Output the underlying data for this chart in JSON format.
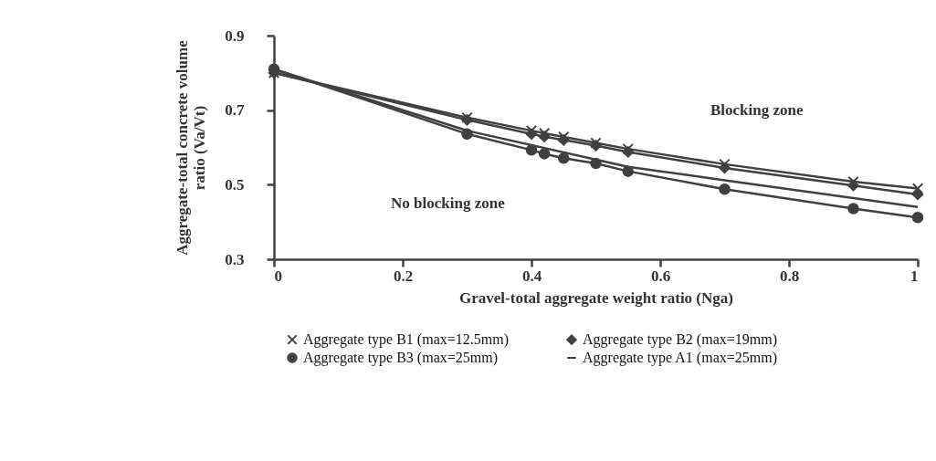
{
  "chart_data": {
    "type": "line",
    "xlabel": "Gravel-total aggregate weight ratio (Nga)",
    "ylabel": "Aggregate-total concrete volume ratio (Va/Vt)",
    "xlim": [
      0,
      1
    ],
    "xticks": [
      0,
      0.2,
      0.4,
      0.6,
      0.8,
      1
    ],
    "ylim": [
      0.3,
      0.9
    ],
    "yticks": [
      0.3,
      0.5,
      0.7,
      0.9
    ],
    "grid": false,
    "legend": "bottom",
    "annotations": [
      "Blocking zone",
      "No blocking zone"
    ],
    "series": [
      {
        "name": "Aggregate type B1 (max=12.5mm)",
        "color": "#404040",
        "marker": "cross",
        "x": [
          0,
          0.3,
          0.4,
          0.42,
          0.45,
          0.5,
          0.55,
          0.7,
          0.9,
          1
        ],
        "values": [
          0.8,
          0.68,
          0.645,
          0.638,
          0.628,
          0.612,
          0.596,
          0.555,
          0.508,
          0.49
        ]
      },
      {
        "name": "Aggregate type B2 (max=19mm)",
        "color": "#404040",
        "marker": "diamond",
        "x": [
          0,
          0.3,
          0.4,
          0.42,
          0.45,
          0.5,
          0.55,
          0.7,
          0.9,
          1
        ],
        "values": [
          0.8,
          0.674,
          0.636,
          0.629,
          0.62,
          0.605,
          0.588,
          0.545,
          0.498,
          0.474
        ]
      },
      {
        "name": "Aggregate type B3 (max=25mm)",
        "color": "#404040",
        "marker": "circle",
        "x": [
          0,
          0.3,
          0.4,
          0.42,
          0.45,
          0.5,
          0.55,
          0.7,
          0.9,
          1
        ],
        "values": [
          0.81,
          0.636,
          0.593,
          0.583,
          0.571,
          0.557,
          0.536,
          0.488,
          0.436,
          0.412
        ]
      },
      {
        "name": "Aggregate type A1 (max=25mm)",
        "color": "#404040",
        "marker": "none",
        "x": [
          0,
          0.3,
          0.55,
          0.7,
          1
        ],
        "values": [
          0.81,
          0.645,
          0.548,
          0.512,
          0.44
        ]
      }
    ]
  }
}
